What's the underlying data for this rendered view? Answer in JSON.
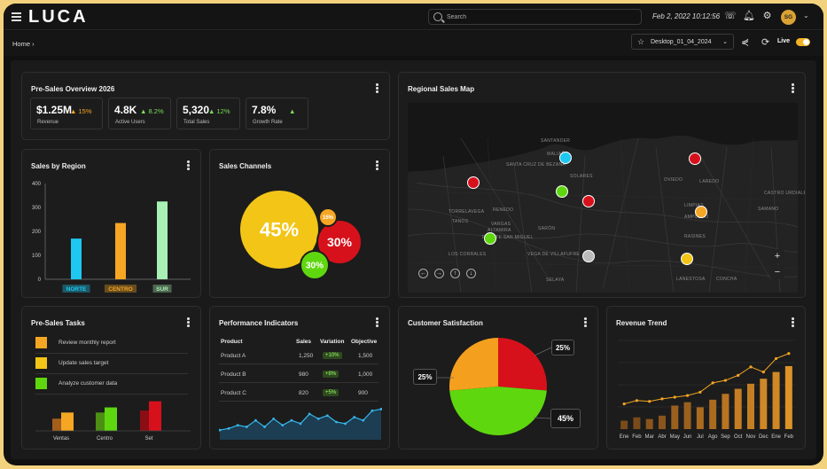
{
  "app": {
    "logo": "LUCA"
  },
  "header": {
    "search_placeholder": "Search",
    "datetime": "Feb 2, 2022 10:12:56",
    "avatar_initials": "SG"
  },
  "subbar": {
    "breadcrumb": "Home",
    "dashboard": "Desktop_01_04_2024",
    "live_label": "Live"
  },
  "overview": {
    "title": "Pre-Sales Overview 2026",
    "kpis": [
      {
        "value": "$1.25M",
        "delta": "15%",
        "label": "Revenue",
        "color": "#f5a623"
      },
      {
        "value": "4.8K",
        "delta": "8.2%",
        "label": "Active Users",
        "color": "#7dde5a"
      },
      {
        "value": "5,320",
        "delta": "12%",
        "label": "Total Sales",
        "color": "#7dde5a"
      },
      {
        "value": "7.8%",
        "delta": "",
        "label": "Growth Rate",
        "color": "#7dde5a"
      }
    ]
  },
  "map": {
    "title": "Regional Sales Map",
    "places": [
      "OVIEDO",
      "LAREDO",
      "CASTRO URDIALES",
      "SAMANO",
      "TORRELAVEGA",
      "TANOS",
      "RENEDO",
      "VARGAS",
      "ALTAMIRA",
      "PUENTE SAN MIGUEL",
      "SARÓN",
      "LOS CORRALES",
      "VEGA DE VILLAFUFRE",
      "SELAYA",
      "RASINES",
      "AMPUERO",
      "LIMPIAS",
      "LANESTOSA",
      "CONCHA",
      "SANTA CRUZ DE BEZANA",
      "MALIAÑO",
      "SANTANDER",
      "SOLARES"
    ]
  },
  "region": {
    "title": "Sales by Region",
    "chart_data": {
      "type": "bar",
      "categories": [
        "NORTE",
        "CENTRO",
        "SUR"
      ],
      "values": [
        170,
        235,
        325
      ],
      "ylim": [
        0,
        400
      ],
      "yticks": [
        0,
        100,
        200,
        300,
        400
      ],
      "colors": [
        "#1ec8f0",
        "#f5a623",
        "#a8f0b4"
      ]
    }
  },
  "channels": {
    "title": "Sales Channels",
    "chart_data": {
      "type": "bubble",
      "slices": [
        {
          "label": "45%",
          "value": 45,
          "color": "#f2c517"
        },
        {
          "label": "30%",
          "value": 30,
          "color": "#d7111b"
        },
        {
          "label": "30%",
          "value": 30,
          "color": "#5fd70f"
        },
        {
          "label": "15%",
          "value": 15,
          "color": "#f5a623"
        }
      ]
    }
  },
  "tasks": {
    "title": "Pre-Sales Tasks",
    "items": [
      {
        "label": "Review monthly report",
        "color": "#f5a623"
      },
      {
        "label": "Update sales target",
        "color": "#f2c517"
      },
      {
        "label": "Analyze customer data",
        "color": "#5fd70f"
      }
    ],
    "chart_data": {
      "type": "bar",
      "categories": [
        "Ventas",
        "Centro",
        "Set"
      ],
      "series": [
        {
          "values": [
            12,
            18,
            20
          ],
          "colors": [
            "#a35e1c",
            "#4d8f14",
            "#8a0e14"
          ]
        },
        {
          "values": [
            18,
            23,
            29
          ],
          "colors": [
            "#f5a623",
            "#5fd70f",
            "#d7111b"
          ]
        }
      ]
    }
  },
  "perf": {
    "title": "Performance Indicators",
    "headers": [
      "Product",
      "Sales",
      "Variation",
      "Objective"
    ],
    "rows": [
      {
        "product": "Product A",
        "sales": "1,250",
        "variation": "+10%",
        "objective": "1,500"
      },
      {
        "product": "Product B",
        "sales": "980",
        "variation": "+8%",
        "objective": "1,000"
      },
      {
        "product": "Product C",
        "sales": "820",
        "variation": "+5%",
        "objective": "900"
      }
    ],
    "chart_data": {
      "type": "area",
      "values": [
        6,
        7,
        9,
        8,
        12,
        8,
        13,
        9,
        12,
        10,
        16,
        13,
        15,
        11,
        10,
        14,
        12,
        18,
        19
      ]
    }
  },
  "satisfaction": {
    "title": "Customer Satisfaction",
    "chart_data": {
      "type": "pie",
      "slices": [
        {
          "label": "25%",
          "value": 25,
          "color": "#d7111b"
        },
        {
          "label": "45%",
          "value": 45,
          "color": "#5fd70f"
        },
        {
          "label": "25%",
          "value": 25,
          "color": "#f59f1f"
        }
      ]
    }
  },
  "revenue": {
    "title": "Revenue Trend",
    "chart_data": {
      "type": "bar+line",
      "categories": [
        "Ene",
        "Feb",
        "Mar",
        "Abr",
        "May",
        "Jun",
        "Jul",
        "Ago",
        "Sep",
        "Oct",
        "Nov",
        "Dec",
        "Ene",
        "Feb"
      ],
      "bars": [
        10,
        14,
        12,
        16,
        28,
        32,
        26,
        35,
        42,
        48,
        54,
        60,
        68,
        75
      ],
      "line": [
        30,
        34,
        33,
        36,
        38,
        40,
        44,
        55,
        58,
        64,
        74,
        68,
        84,
        90
      ]
    }
  }
}
